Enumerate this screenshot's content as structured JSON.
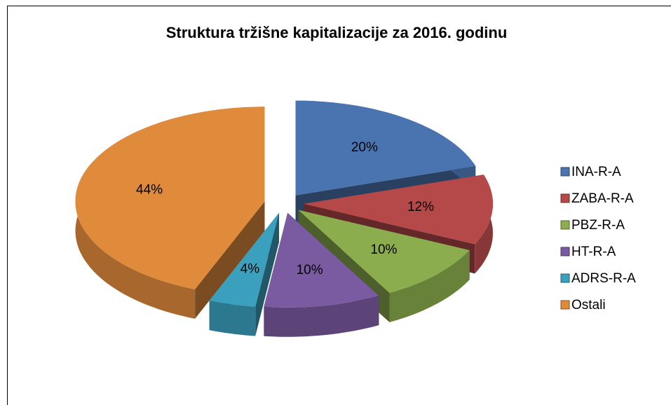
{
  "chart_data": {
    "type": "pie",
    "title": "Struktura tržišne kapitalizacije za 2016. godinu",
    "categories": [
      "INA-R-A",
      "ZABA-R-A",
      "PBZ-R-A",
      "HT-R-A",
      "ADRS-R-A",
      "Ostali"
    ],
    "values": [
      20,
      12,
      10,
      10,
      4,
      44
    ],
    "value_labels": [
      "20%",
      "12%",
      "10%",
      "10%",
      "4%",
      "44%"
    ],
    "colors": [
      "#4a74b0",
      "#b5494a",
      "#8cad4d",
      "#7a5aa1",
      "#3ba0bd",
      "#e08a3c"
    ],
    "legend": "right"
  }
}
